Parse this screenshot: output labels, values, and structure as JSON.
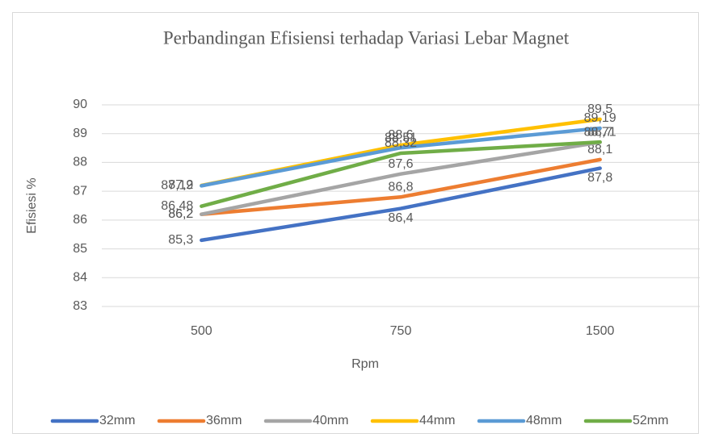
{
  "chart_data": {
    "type": "line",
    "title": "Perbandingan Efisiensi terhadap Variasi Lebar Magnet",
    "x_label": "Rpm",
    "y_label": "Efisiesi %",
    "categories": [
      "500",
      "750",
      "1500"
    ],
    "series": [
      {
        "name": "32mm",
        "color": "#4472c4",
        "values": [
          85.3,
          86.4,
          87.8
        ],
        "value_labels": [
          "85,3",
          "86,4",
          "87,8"
        ]
      },
      {
        "name": "36mm",
        "color": "#ed7d31",
        "values": [
          86.2,
          86.8,
          88.1
        ],
        "value_labels": [
          "86,2",
          "86,8",
          "88,1"
        ]
      },
      {
        "name": "40mm",
        "color": "#a5a5a5",
        "values": [
          86.2,
          87.6,
          88.7
        ],
        "value_labels": [
          "86,2",
          "87,6",
          "88,7"
        ]
      },
      {
        "name": "44mm",
        "color": "#ffc000",
        "values": [
          87.2,
          88.6,
          89.5
        ],
        "value_labels": [
          "87,2",
          "88,6",
          "89,5"
        ]
      },
      {
        "name": "48mm",
        "color": "#5b9bd5",
        "values": [
          87.19,
          88.51,
          89.19
        ],
        "value_labels": [
          "87,19",
          "88,51",
          "89,19"
        ]
      },
      {
        "name": "52mm",
        "color": "#70ad47",
        "values": [
          86.48,
          88.32,
          88.71
        ],
        "value_labels": [
          "86,48",
          "88,32",
          "88,71"
        ]
      }
    ],
    "ylim": [
      83,
      90
    ],
    "yticks": [
      83,
      84,
      85,
      86,
      87,
      88,
      89,
      90
    ],
    "grid": true,
    "legend": "bottom"
  }
}
